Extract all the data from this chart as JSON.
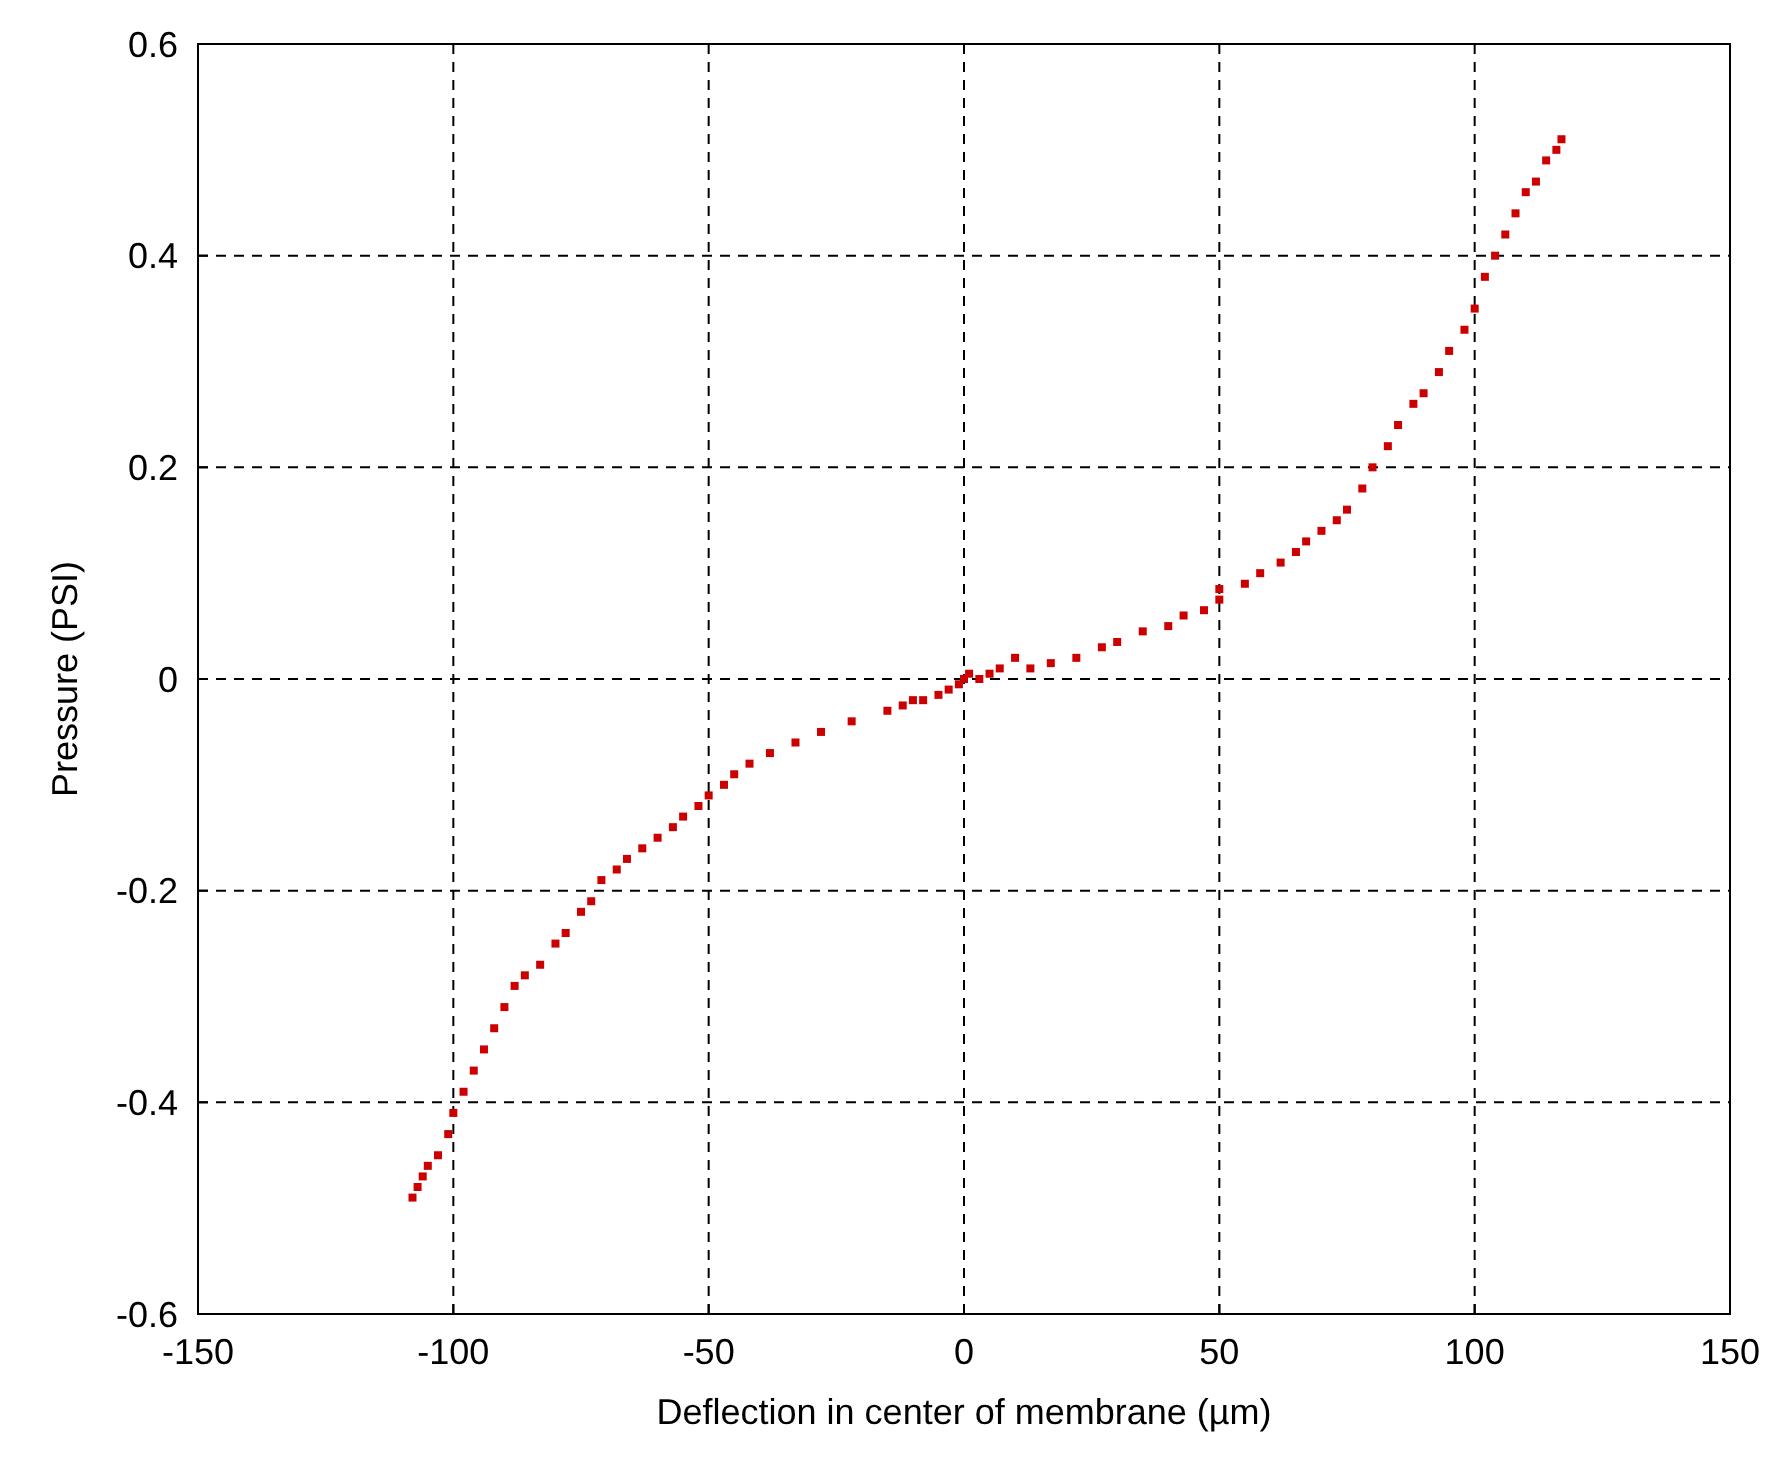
{
  "chart_data": {
    "type": "scatter",
    "xlabel": "Deflection in center of membrane (µm)",
    "ylabel": "Pressure (PSI)",
    "xlim": [
      -150,
      150
    ],
    "xticks": [
      -150,
      -100,
      -50,
      0,
      50,
      100,
      150
    ],
    "ylim": [
      -0.6,
      0.6
    ],
    "yticks": [
      -0.6,
      -0.4,
      -0.2,
      0,
      0.2,
      0.4,
      0.6
    ],
    "grid": true,
    "marker": "square",
    "series": [
      {
        "color": "#cc0000",
        "x": [
          -108,
          -107,
          -106,
          -105,
          -103,
          -101,
          -100,
          -98,
          -96,
          -94,
          -92,
          -90,
          -88,
          -86,
          -83,
          -80,
          -78,
          -75,
          -73,
          -71,
          -68,
          -66,
          -63,
          -60,
          -57,
          -55,
          -52,
          -50,
          -47,
          -45,
          -42,
          -38,
          -33,
          -28,
          -22,
          -15,
          -12,
          -10,
          -8,
          -5,
          -3,
          -1,
          0,
          1,
          3,
          5,
          7,
          10,
          13,
          17,
          22,
          27,
          30,
          35,
          40,
          43,
          47,
          50,
          50,
          55,
          58,
          62,
          65,
          67,
          70,
          73,
          75,
          78,
          80,
          83,
          85,
          88,
          90,
          93,
          95,
          98,
          100,
          102,
          104,
          106,
          108,
          110,
          112,
          114,
          116,
          117
        ],
        "values": [
          -0.49,
          -0.48,
          -0.47,
          -0.46,
          -0.45,
          -0.43,
          -0.41,
          -0.39,
          -0.37,
          -0.35,
          -0.33,
          -0.31,
          -0.29,
          -0.28,
          -0.27,
          -0.25,
          -0.24,
          -0.22,
          -0.21,
          -0.19,
          -0.18,
          -0.17,
          -0.16,
          -0.15,
          -0.14,
          -0.13,
          -0.12,
          -0.11,
          -0.1,
          -0.09,
          -0.08,
          -0.07,
          -0.06,
          -0.05,
          -0.04,
          -0.03,
          -0.025,
          -0.02,
          -0.02,
          -0.015,
          -0.01,
          -0.005,
          0,
          0.005,
          0,
          0.005,
          0.01,
          0.02,
          0.01,
          0.015,
          0.02,
          0.03,
          0.035,
          0.045,
          0.05,
          0.06,
          0.065,
          0.075,
          0.085,
          0.09,
          0.1,
          0.11,
          0.12,
          0.13,
          0.14,
          0.15,
          0.16,
          0.18,
          0.2,
          0.22,
          0.24,
          0.26,
          0.27,
          0.29,
          0.31,
          0.33,
          0.35,
          0.38,
          0.4,
          0.42,
          0.44,
          0.46,
          0.47,
          0.49,
          0.5,
          0.51
        ]
      }
    ]
  }
}
